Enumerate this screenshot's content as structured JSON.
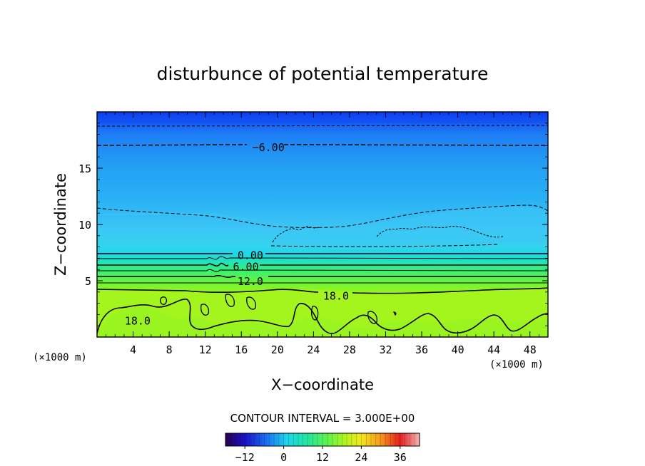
{
  "chart_data": {
    "type": "contour",
    "title": "disturbunce of potential temperature",
    "xlabel": "X−coordinate",
    "ylabel": "Z−coordinate",
    "x_unit": "(×1000 m)",
    "z_unit": "(×1000 m)",
    "xlim": [
      0,
      50
    ],
    "ylim": [
      0,
      20
    ],
    "x_ticks": [
      4,
      8,
      12,
      16,
      20,
      24,
      28,
      32,
      36,
      40,
      44,
      48
    ],
    "y_ticks": [
      5,
      10,
      15
    ],
    "contour_interval_text": "CONTOUR INTERVAL = 3.000E+00",
    "contour_labels": [
      {
        "text": "−6.00",
        "x": 19.0,
        "z": 16.9
      },
      {
        "text": "0.00",
        "x": 17.0,
        "z": 7.3
      },
      {
        "text": "6.00",
        "x": 16.5,
        "z": 6.3
      },
      {
        "text": "12.0",
        "x": 17.0,
        "z": 5.0
      },
      {
        "text": "18.0",
        "x": 26.5,
        "z": 3.7
      },
      {
        "text": "18.0",
        "x": 4.5,
        "z": 1.5
      }
    ],
    "colorbar": {
      "min": -18,
      "max": 42,
      "ticks": [
        -12,
        0,
        12,
        24,
        36
      ],
      "tick_labels": [
        "−12",
        "0",
        "12",
        "24",
        "36"
      ]
    },
    "colors": {
      "deep_blue": "#0a3cf0",
      "blue": "#1e7ef5",
      "sky": "#23a7f3",
      "light_sky": "#3cc6f5",
      "cyan": "#1ed7ea",
      "teal": "#20e6b4",
      "green": "#36f07a",
      "lime": "#8cf522",
      "yellow_green": "#a4f51e"
    }
  }
}
